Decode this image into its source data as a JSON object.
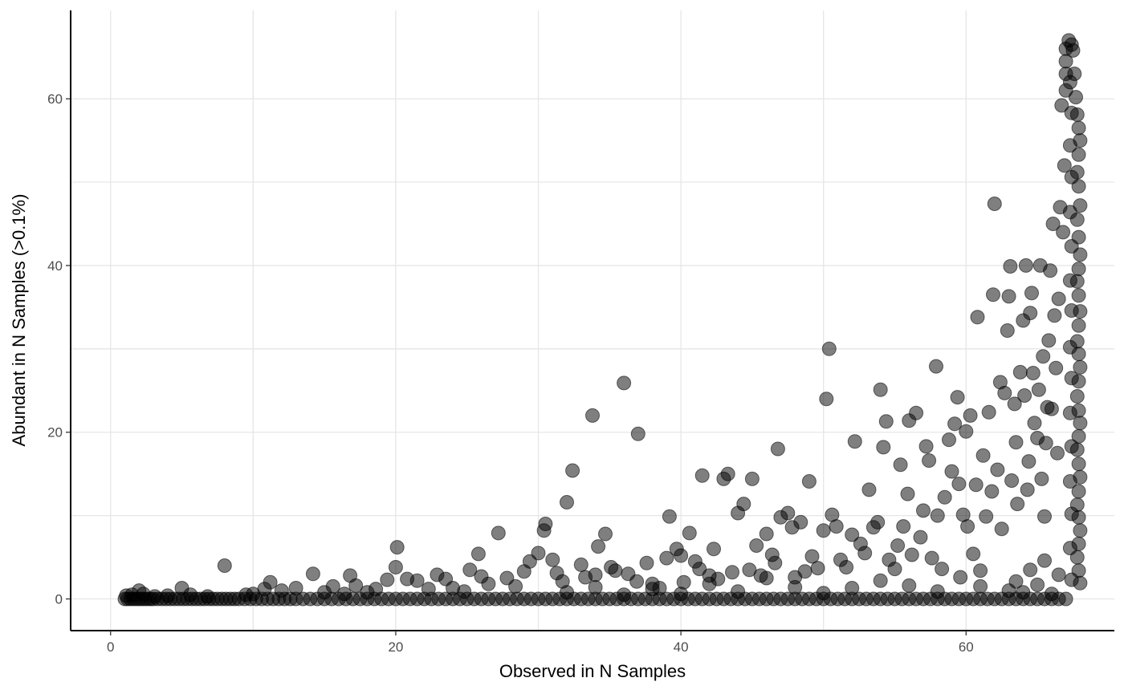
{
  "chart_data": {
    "type": "scatter",
    "title": "",
    "xlabel": "Observed in N Samples",
    "ylabel": "Abundant in N Samples (>0.1%)",
    "xlim": [
      -2.8,
      70.4
    ],
    "ylim": [
      -3.8,
      70.6
    ],
    "x_ticks": [
      0,
      20,
      40,
      60
    ],
    "y_ticks": [
      0,
      20,
      40,
      60
    ],
    "x_tick_labels": [
      "0",
      "20",
      "40",
      "60"
    ],
    "y_tick_labels": [
      "0",
      "20",
      "40",
      "60"
    ],
    "grid": true,
    "legend": "none",
    "point_color": "#000000",
    "point_alpha": 0.5,
    "points": [
      [
        1,
        0
      ],
      [
        1.2,
        0
      ],
      [
        1.4,
        0
      ],
      [
        1.6,
        0
      ],
      [
        1.8,
        0
      ],
      [
        2,
        0
      ],
      [
        2.2,
        0
      ],
      [
        2.4,
        0
      ],
      [
        2.6,
        0
      ],
      [
        2.8,
        0
      ],
      [
        3,
        0
      ],
      [
        3.3,
        0
      ],
      [
        3.6,
        0
      ],
      [
        3.9,
        0
      ],
      [
        4.2,
        0
      ],
      [
        4.5,
        0
      ],
      [
        4.8,
        0
      ],
      [
        5.1,
        0
      ],
      [
        5.4,
        0
      ],
      [
        5.7,
        0
      ],
      [
        6,
        0
      ],
      [
        6.3,
        0
      ],
      [
        6.6,
        0
      ],
      [
        6.9,
        0
      ],
      [
        7.2,
        0
      ],
      [
        7.5,
        0
      ],
      [
        7.8,
        0
      ],
      [
        8.1,
        0
      ],
      [
        8.4,
        0
      ],
      [
        8.7,
        0
      ],
      [
        9,
        0
      ],
      [
        9.4,
        0
      ],
      [
        9.8,
        0
      ],
      [
        10.2,
        0
      ],
      [
        10.6,
        0
      ],
      [
        11,
        0
      ],
      [
        11.4,
        0
      ],
      [
        11.8,
        0
      ],
      [
        12.2,
        0
      ],
      [
        12.6,
        0
      ],
      [
        13,
        0
      ],
      [
        13.5,
        0
      ],
      [
        14,
        0
      ],
      [
        14.5,
        0
      ],
      [
        15,
        0
      ],
      [
        15.5,
        0
      ],
      [
        16,
        0
      ],
      [
        16.5,
        0
      ],
      [
        17,
        0
      ],
      [
        17.5,
        0
      ],
      [
        18,
        0
      ],
      [
        18.5,
        0
      ],
      [
        19,
        0
      ],
      [
        19.5,
        0
      ],
      [
        20,
        0
      ],
      [
        20.5,
        0
      ],
      [
        21,
        0
      ],
      [
        21.5,
        0
      ],
      [
        22,
        0
      ],
      [
        22.5,
        0
      ],
      [
        23,
        0
      ],
      [
        23.5,
        0
      ],
      [
        24,
        0
      ],
      [
        24.5,
        0
      ],
      [
        25,
        0
      ],
      [
        25.5,
        0
      ],
      [
        26,
        0
      ],
      [
        26.5,
        0
      ],
      [
        27,
        0
      ],
      [
        27.5,
        0
      ],
      [
        28,
        0
      ],
      [
        28.5,
        0
      ],
      [
        29,
        0
      ],
      [
        29.5,
        0
      ],
      [
        30,
        0
      ],
      [
        30.5,
        0
      ],
      [
        31,
        0
      ],
      [
        31.5,
        0
      ],
      [
        32,
        0
      ],
      [
        32.5,
        0
      ],
      [
        33,
        0
      ],
      [
        33.5,
        0
      ],
      [
        34,
        0
      ],
      [
        34.5,
        0
      ],
      [
        35,
        0
      ],
      [
        35.5,
        0
      ],
      [
        36,
        0
      ],
      [
        36.5,
        0
      ],
      [
        37,
        0
      ],
      [
        37.5,
        0
      ],
      [
        38,
        0
      ],
      [
        38.5,
        0
      ],
      [
        39,
        0
      ],
      [
        39.5,
        0
      ],
      [
        40,
        0
      ],
      [
        40.5,
        0
      ],
      [
        41,
        0
      ],
      [
        41.5,
        0
      ],
      [
        42,
        0
      ],
      [
        42.5,
        0
      ],
      [
        43,
        0
      ],
      [
        43.5,
        0
      ],
      [
        44,
        0
      ],
      [
        44.5,
        0
      ],
      [
        45,
        0
      ],
      [
        45.5,
        0
      ],
      [
        46,
        0
      ],
      [
        46.5,
        0
      ],
      [
        47,
        0
      ],
      [
        47.5,
        0
      ],
      [
        48,
        0
      ],
      [
        48.5,
        0
      ],
      [
        49,
        0
      ],
      [
        49.5,
        0
      ],
      [
        50,
        0
      ],
      [
        50.5,
        0
      ],
      [
        51,
        0
      ],
      [
        51.5,
        0
      ],
      [
        52,
        0
      ],
      [
        52.5,
        0
      ],
      [
        53,
        0
      ],
      [
        53.5,
        0
      ],
      [
        54,
        0
      ],
      [
        54.5,
        0
      ],
      [
        55,
        0
      ],
      [
        55.5,
        0
      ],
      [
        56,
        0
      ],
      [
        56.5,
        0
      ],
      [
        57,
        0
      ],
      [
        57.5,
        0
      ],
      [
        58,
        0
      ],
      [
        58.5,
        0
      ],
      [
        59,
        0
      ],
      [
        59.5,
        0
      ],
      [
        60,
        0
      ],
      [
        60.5,
        0
      ],
      [
        61,
        0
      ],
      [
        61.5,
        0
      ],
      [
        62,
        0
      ],
      [
        62.5,
        0
      ],
      [
        63,
        0
      ],
      [
        63.5,
        0
      ],
      [
        64,
        0
      ],
      [
        64.5,
        0
      ],
      [
        65,
        0
      ],
      [
        65.5,
        0
      ],
      [
        66,
        0
      ],
      [
        66.5,
        0
      ],
      [
        67,
        0
      ],
      [
        1.1,
        0.4
      ],
      [
        1.5,
        0.5
      ],
      [
        2,
        1
      ],
      [
        2.3,
        0.6
      ],
      [
        3.1,
        0.3
      ],
      [
        4,
        0.4
      ],
      [
        5,
        1.3
      ],
      [
        5.6,
        0.5
      ],
      [
        6.8,
        0.3
      ],
      [
        8,
        4
      ],
      [
        9.5,
        0.5
      ],
      [
        10,
        0.6
      ],
      [
        10.8,
        1.2
      ],
      [
        11.2,
        2
      ],
      [
        12,
        1
      ],
      [
        13,
        1.3
      ],
      [
        14.2,
        3
      ],
      [
        15,
        0.8
      ],
      [
        15.6,
        1.5
      ],
      [
        16.4,
        0.6
      ],
      [
        16.8,
        2.8
      ],
      [
        17.2,
        1.6
      ],
      [
        18,
        0.8
      ],
      [
        18.6,
        1.2
      ],
      [
        19.4,
        2.3
      ],
      [
        20,
        3.8
      ],
      [
        20.1,
        6.2
      ],
      [
        20.8,
        2.4
      ],
      [
        21.5,
        2.2
      ],
      [
        22.3,
        1.2
      ],
      [
        22.9,
        2.9
      ],
      [
        23.5,
        2.4
      ],
      [
        24,
        1.3
      ],
      [
        24.8,
        0.9
      ],
      [
        25.2,
        3.5
      ],
      [
        25.8,
        5.4
      ],
      [
        26,
        2.7
      ],
      [
        26.5,
        1.8
      ],
      [
        27.2,
        7.9
      ],
      [
        27.8,
        2.5
      ],
      [
        28.4,
        1.5
      ],
      [
        29,
        3.3
      ],
      [
        29.4,
        4.5
      ],
      [
        30,
        5.5
      ],
      [
        30.4,
        8.2
      ],
      [
        30.5,
        9
      ],
      [
        31,
        4.7
      ],
      [
        31.3,
        3.1
      ],
      [
        31.7,
        2.1
      ],
      [
        32,
        11.6
      ],
      [
        32.4,
        15.4
      ],
      [
        33,
        4.1
      ],
      [
        33.3,
        2.6
      ],
      [
        33.8,
        22
      ],
      [
        34,
        2.9
      ],
      [
        34.2,
        6.3
      ],
      [
        34.7,
        7.8
      ],
      [
        35.1,
        3.8
      ],
      [
        35.4,
        3.4
      ],
      [
        36,
        25.9
      ],
      [
        36.3,
        3
      ],
      [
        36.9,
        2.1
      ],
      [
        37,
        19.8
      ],
      [
        37.6,
        4.3
      ],
      [
        38,
        1.8
      ],
      [
        38.5,
        1.3
      ],
      [
        39,
        4.9
      ],
      [
        39.2,
        9.9
      ],
      [
        39.7,
        6
      ],
      [
        40,
        5.2
      ],
      [
        40.2,
        2
      ],
      [
        40.6,
        7.9
      ],
      [
        41,
        4.5
      ],
      [
        41.3,
        3.6
      ],
      [
        41.5,
        14.8
      ],
      [
        42,
        2.8
      ],
      [
        42.3,
        6
      ],
      [
        42.6,
        2.4
      ],
      [
        43,
        14.4
      ],
      [
        43.3,
        15
      ],
      [
        43.6,
        3.2
      ],
      [
        44,
        10.3
      ],
      [
        44.4,
        11.4
      ],
      [
        44.8,
        3.5
      ],
      [
        45,
        14.4
      ],
      [
        45.3,
        6.4
      ],
      [
        45.6,
        2.8
      ],
      [
        46,
        7.8
      ],
      [
        46.4,
        5.3
      ],
      [
        46.6,
        4.3
      ],
      [
        46.8,
        18
      ],
      [
        47,
        9.8
      ],
      [
        47.5,
        10.3
      ],
      [
        47.8,
        8.6
      ],
      [
        48,
        2.6
      ],
      [
        48.4,
        9.2
      ],
      [
        48.7,
        3.3
      ],
      [
        49,
        14.1
      ],
      [
        49.2,
        5.1
      ],
      [
        49.6,
        3.7
      ],
      [
        50,
        8.2
      ],
      [
        50.2,
        24
      ],
      [
        50.4,
        30
      ],
      [
        50.6,
        10.1
      ],
      [
        50.9,
        8.7
      ],
      [
        51.2,
        4.7
      ],
      [
        51.6,
        3.8
      ],
      [
        52,
        7.7
      ],
      [
        52.2,
        18.9
      ],
      [
        52.6,
        6.6
      ],
      [
        52.9,
        5.5
      ],
      [
        53.2,
        13.1
      ],
      [
        53.5,
        8.6
      ],
      [
        53.8,
        9.2
      ],
      [
        54,
        25.1
      ],
      [
        54.2,
        18.2
      ],
      [
        54.4,
        21.3
      ],
      [
        54.6,
        4.7
      ],
      [
        55,
        3.6
      ],
      [
        55.2,
        6.4
      ],
      [
        55.4,
        16.1
      ],
      [
        55.6,
        8.7
      ],
      [
        55.9,
        12.6
      ],
      [
        56,
        21.4
      ],
      [
        56.2,
        5.3
      ],
      [
        56.5,
        22.3
      ],
      [
        56.8,
        7.4
      ],
      [
        57,
        10.6
      ],
      [
        57.2,
        18.3
      ],
      [
        57.4,
        16.6
      ],
      [
        57.6,
        4.9
      ],
      [
        57.9,
        27.9
      ],
      [
        58,
        10
      ],
      [
        58.3,
        3.6
      ],
      [
        58.5,
        12.2
      ],
      [
        58.8,
        19.1
      ],
      [
        59,
        15.3
      ],
      [
        59.2,
        21
      ],
      [
        59.4,
        24.2
      ],
      [
        59.5,
        13.8
      ],
      [
        59.8,
        10.1
      ],
      [
        60,
        20.1
      ],
      [
        60.1,
        8.7
      ],
      [
        60.3,
        22
      ],
      [
        60.5,
        5.4
      ],
      [
        60.7,
        13.7
      ],
      [
        60.8,
        33.8
      ],
      [
        61,
        3.4
      ],
      [
        61.2,
        17.2
      ],
      [
        61.4,
        9.9
      ],
      [
        61.6,
        22.4
      ],
      [
        61.8,
        12.9
      ],
      [
        61.9,
        36.5
      ],
      [
        62,
        47.4
      ],
      [
        62.2,
        15.5
      ],
      [
        62.4,
        26
      ],
      [
        62.5,
        8.4
      ],
      [
        62.7,
        24.7
      ],
      [
        62.9,
        32.2
      ],
      [
        63,
        36.3
      ],
      [
        63.1,
        39.9
      ],
      [
        63.2,
        14.2
      ],
      [
        63.4,
        23.4
      ],
      [
        63.5,
        18.8
      ],
      [
        63.6,
        11.4
      ],
      [
        63.8,
        27.2
      ],
      [
        64,
        33.4
      ],
      [
        64.1,
        24.4
      ],
      [
        64.2,
        40
      ],
      [
        64.3,
        13.1
      ],
      [
        64.4,
        16.5
      ],
      [
        64.5,
        34.3
      ],
      [
        64.6,
        36.7
      ],
      [
        64.7,
        27.1
      ],
      [
        64.8,
        21.1
      ],
      [
        65,
        19.3
      ],
      [
        65.1,
        25.1
      ],
      [
        65.2,
        40
      ],
      [
        65.3,
        14.4
      ],
      [
        65.4,
        29.1
      ],
      [
        65.5,
        9.9
      ],
      [
        65.6,
        18.7
      ],
      [
        65.7,
        23
      ],
      [
        65.8,
        31
      ],
      [
        65.9,
        39.4
      ],
      [
        66,
        22.8
      ],
      [
        66.1,
        45
      ],
      [
        66.2,
        34
      ],
      [
        66.3,
        27.7
      ],
      [
        66.4,
        17.5
      ],
      [
        66.5,
        36
      ],
      [
        66.6,
        47
      ],
      [
        66.7,
        59.2
      ],
      [
        66.8,
        44
      ],
      [
        66.9,
        52
      ],
      [
        67,
        61
      ],
      [
        67,
        63
      ],
      [
        67,
        64.5
      ],
      [
        67,
        66
      ],
      [
        67.2,
        67
      ],
      [
        67.4,
        66.5
      ],
      [
        67.5,
        65.8
      ],
      [
        67.6,
        63
      ],
      [
        67.7,
        60.2
      ],
      [
        67.8,
        58.1
      ],
      [
        67.9,
        56.5
      ],
      [
        68,
        55
      ],
      [
        67.9,
        53.3
      ],
      [
        67.8,
        51.2
      ],
      [
        67.9,
        49.5
      ],
      [
        68,
        47.2
      ],
      [
        67.8,
        45.5
      ],
      [
        67.9,
        43.4
      ],
      [
        68,
        41.3
      ],
      [
        67.9,
        39.6
      ],
      [
        67.8,
        38.1
      ],
      [
        67.9,
        36.4
      ],
      [
        68,
        34.5
      ],
      [
        67.9,
        32.8
      ],
      [
        67.8,
        30.9
      ],
      [
        67.9,
        29.4
      ],
      [
        68,
        27.8
      ],
      [
        67.9,
        26.1
      ],
      [
        67.8,
        24.3
      ],
      [
        67.9,
        22.6
      ],
      [
        68,
        21.1
      ],
      [
        67.9,
        19.5
      ],
      [
        67.8,
        17.9
      ],
      [
        67.9,
        16.2
      ],
      [
        68,
        14.6
      ],
      [
        67.9,
        12.9
      ],
      [
        67.8,
        11.3
      ],
      [
        67.9,
        9.8
      ],
      [
        68,
        8.2
      ],
      [
        67.9,
        6.6
      ],
      [
        67.8,
        5
      ],
      [
        67.9,
        3.4
      ],
      [
        68,
        1.9
      ],
      [
        67.3,
        62
      ],
      [
        67.4,
        58.3
      ],
      [
        67.3,
        54.4
      ],
      [
        67.4,
        50.6
      ],
      [
        67.3,
        46.4
      ],
      [
        67.4,
        42.3
      ],
      [
        67.3,
        38.2
      ],
      [
        67.4,
        34.6
      ],
      [
        67.3,
        30.2
      ],
      [
        67.4,
        26.5
      ],
      [
        67.3,
        22.3
      ],
      [
        67.4,
        18.3
      ],
      [
        67.3,
        14.1
      ],
      [
        67.4,
        10.2
      ],
      [
        67.3,
        6.1
      ],
      [
        67.4,
        2.3
      ],
      [
        63,
        1
      ],
      [
        63.5,
        2.1
      ],
      [
        64,
        0.8
      ],
      [
        64.5,
        3.5
      ],
      [
        65,
        1.7
      ],
      [
        65.5,
        4.6
      ],
      [
        66,
        0.6
      ],
      [
        66.5,
        2.9
      ],
      [
        61,
        1.5
      ],
      [
        59.6,
        2.6
      ],
      [
        58,
        0.9
      ],
      [
        56,
        1.6
      ],
      [
        54,
        2.2
      ],
      [
        52,
        1.3
      ],
      [
        50,
        0.7
      ],
      [
        48,
        1.4
      ],
      [
        46,
        2.5
      ],
      [
        44,
        0.9
      ],
      [
        42,
        1.8
      ],
      [
        40,
        0.6
      ],
      [
        38,
        1.2
      ],
      [
        36,
        0.5
      ],
      [
        34,
        1.4
      ],
      [
        32,
        0.8
      ]
    ]
  }
}
